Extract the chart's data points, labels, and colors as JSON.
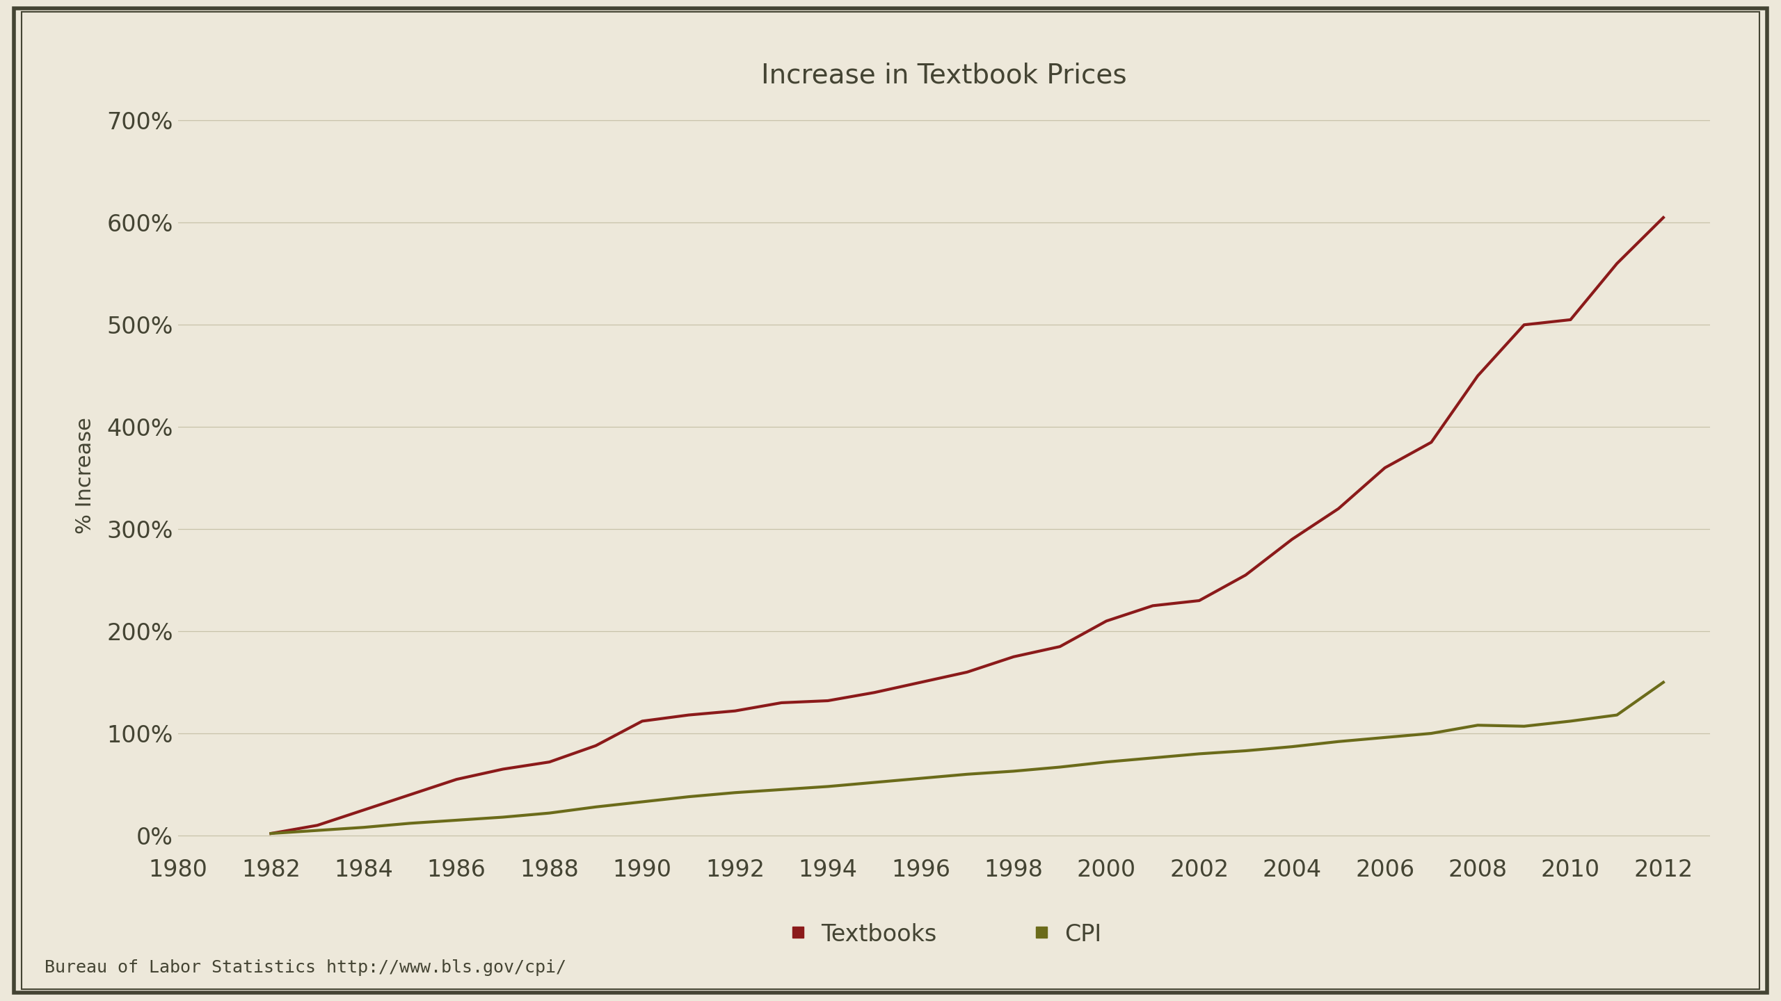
{
  "title": "Increase in Textbook Prices",
  "ylabel": "% Increase",
  "footnote": "Bureau of Labor Statistics http://www.bls.gov/cpi/",
  "background_color": "#ede8da",
  "plot_background_color": "#ede8da",
  "grid_color": "#c8c2aa",
  "border_color": "#444433",
  "title_fontsize": 28,
  "label_fontsize": 22,
  "tick_fontsize": 24,
  "legend_fontsize": 24,
  "footnote_fontsize": 18,
  "textbooks_color": "#8b1a1a",
  "cpi_color": "#6b6b1a",
  "line_width": 3.0,
  "years": [
    1982,
    1983,
    1984,
    1985,
    1986,
    1987,
    1988,
    1989,
    1990,
    1991,
    1992,
    1993,
    1994,
    1995,
    1996,
    1997,
    1998,
    1999,
    2000,
    2001,
    2002,
    2003,
    2004,
    2005,
    2006,
    2007,
    2008,
    2009,
    2010,
    2011,
    2012
  ],
  "textbooks": [
    2,
    10,
    25,
    40,
    55,
    65,
    72,
    88,
    112,
    118,
    122,
    130,
    132,
    140,
    150,
    160,
    175,
    185,
    210,
    225,
    230,
    255,
    290,
    320,
    360,
    385,
    450,
    500,
    505,
    560,
    605
  ],
  "cpi": [
    2,
    5,
    8,
    12,
    15,
    18,
    22,
    28,
    33,
    38,
    42,
    45,
    48,
    52,
    56,
    60,
    63,
    67,
    72,
    76,
    80,
    83,
    87,
    92,
    96,
    100,
    108,
    107,
    112,
    118,
    150
  ],
  "xlim": [
    1980,
    2013
  ],
  "ylim": [
    -15,
    720
  ],
  "yticks": [
    0,
    100,
    200,
    300,
    400,
    500,
    600,
    700
  ],
  "xticks": [
    1980,
    1982,
    1984,
    1986,
    1988,
    1990,
    1992,
    1994,
    1996,
    1998,
    2000,
    2002,
    2004,
    2006,
    2008,
    2010,
    2012
  ],
  "legend_textbooks": "Textbooks",
  "legend_cpi": "CPI"
}
